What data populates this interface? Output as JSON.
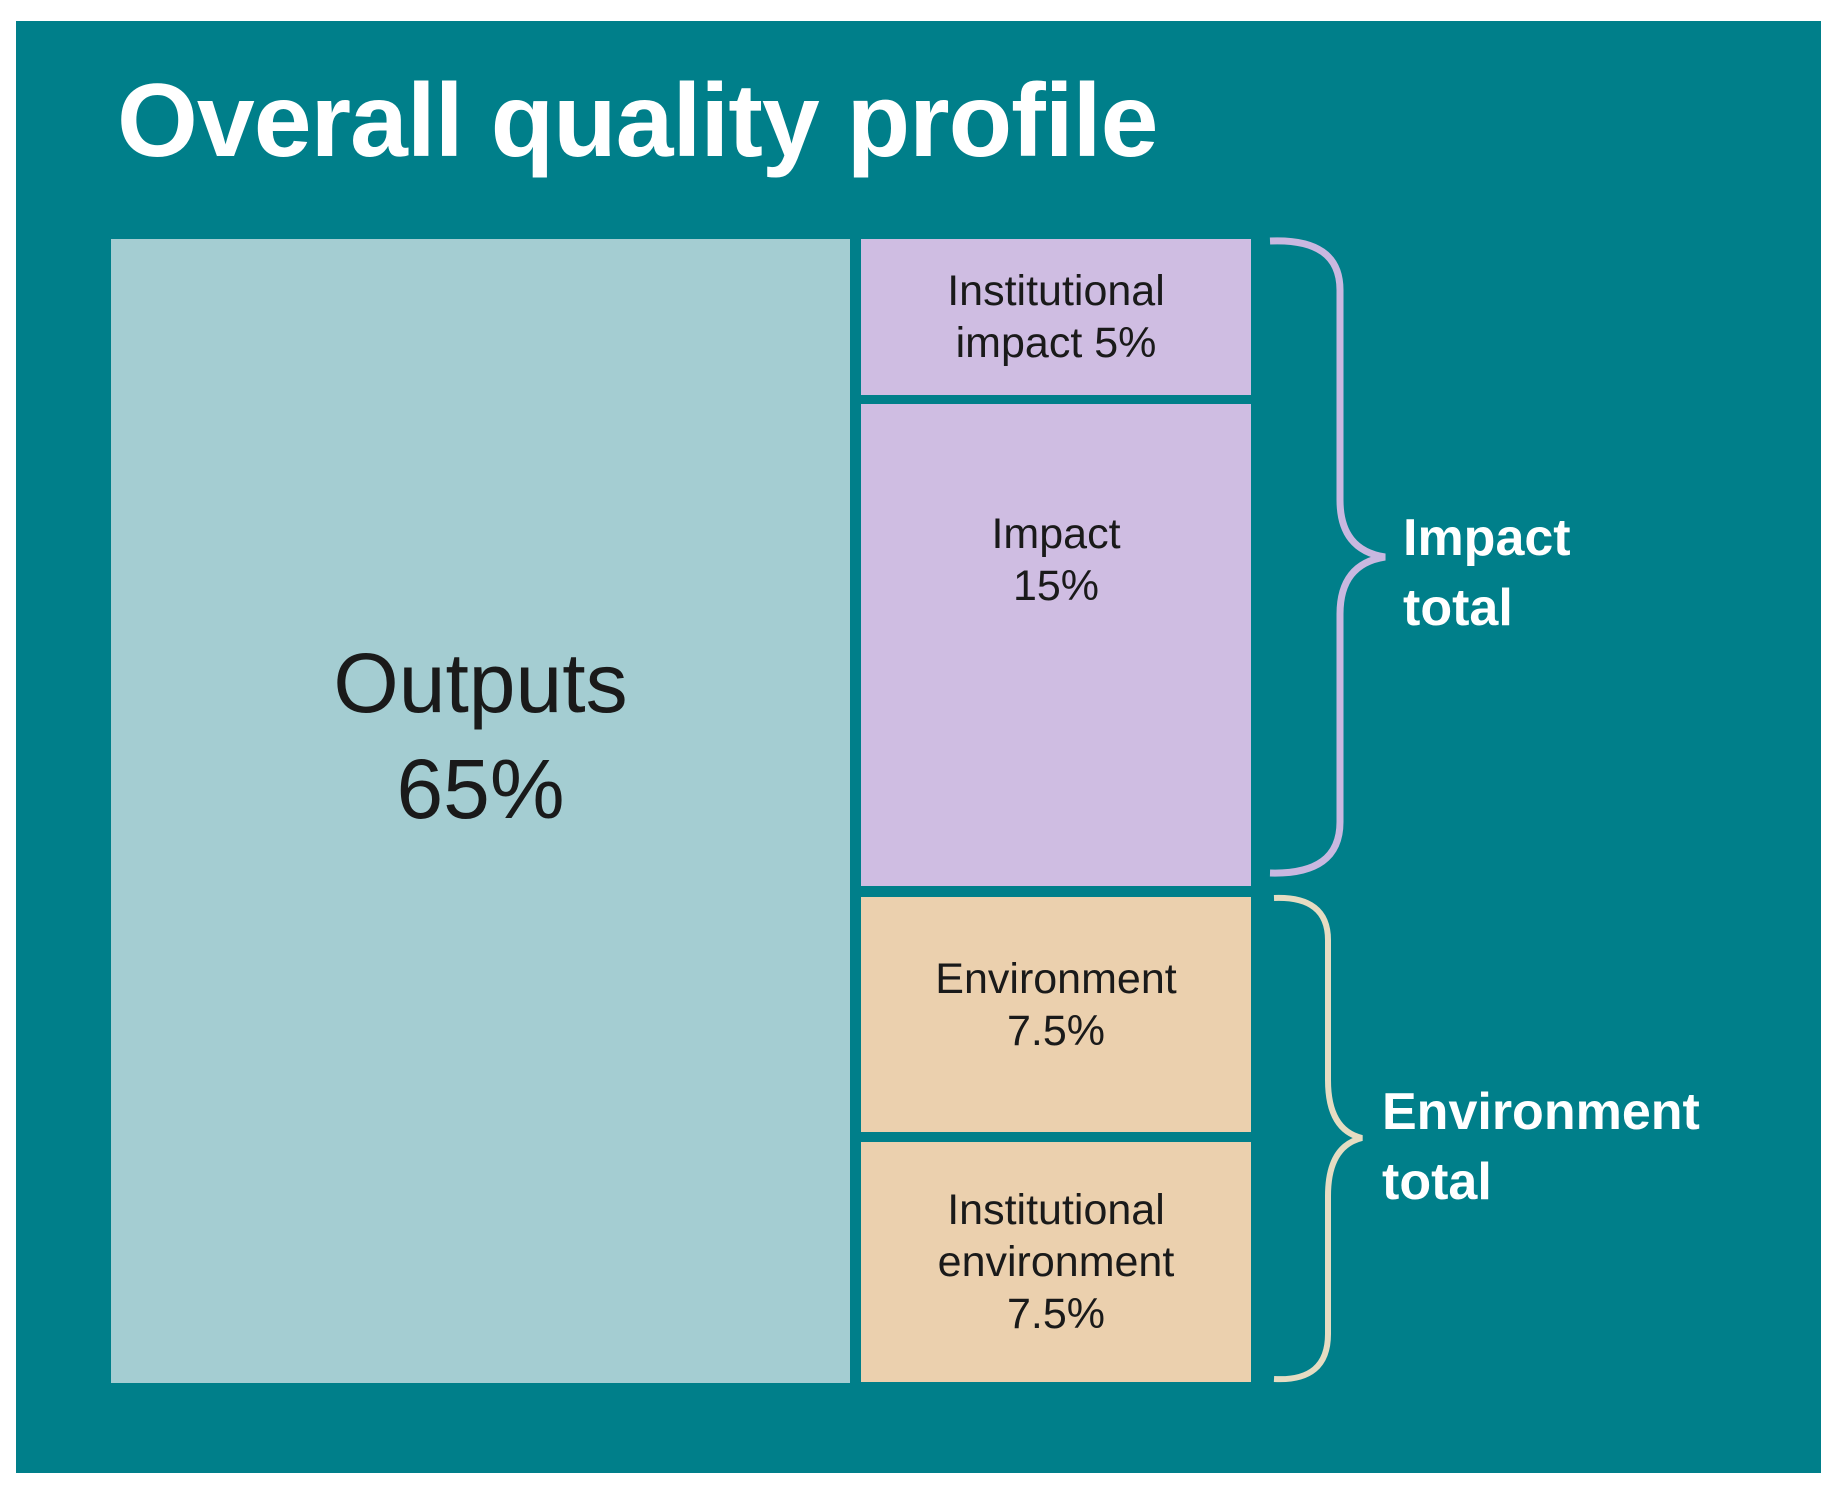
{
  "chart_data": {
    "type": "treemap",
    "title": "Overall quality profile",
    "cells": [
      {
        "id": "outputs",
        "label": "Outputs",
        "value_label": "65%",
        "value": 65,
        "group": "",
        "color": "#a4cdd2"
      },
      {
        "id": "inst-impact",
        "label": "Institutional impact 5%",
        "value_label": "",
        "value": 5,
        "group": "Impact total",
        "color": "#cfbde2"
      },
      {
        "id": "impact",
        "label": "Impact",
        "value_label": "15%",
        "value": 15,
        "group": "Impact total",
        "color": "#cfbde2"
      },
      {
        "id": "environment",
        "label": "Environment",
        "value_label": "7.5%",
        "value": 7.5,
        "group": "Environment total",
        "color": "#ebd0ae"
      },
      {
        "id": "inst-env",
        "label": "Institutional environment",
        "value_label": "7.5%",
        "value": 7.5,
        "group": "Environment total",
        "color": "#ebd0ae"
      }
    ],
    "groups": [
      {
        "label_line1": "Impact",
        "label_line2": "total",
        "brace_color": "#c9b8e0"
      },
      {
        "label_line1": "Environment",
        "label_line2": "total",
        "brace_color": "#e6dcc2"
      }
    ],
    "background_color": "#007f8a"
  },
  "labels": {
    "inst_impact_l1": "Institutional",
    "inst_impact_l2": "impact 5%",
    "inst_env_l1": "Institutional",
    "inst_env_l2": "environment"
  }
}
